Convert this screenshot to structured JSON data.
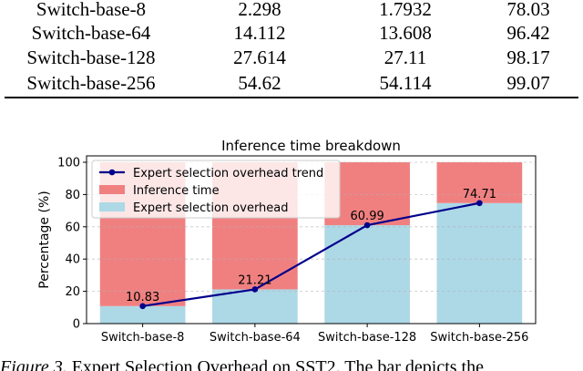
{
  "table": {
    "rows": [
      [
        "Switch-base-8",
        "2.298",
        "1.7932",
        "78.03"
      ],
      [
        "Switch-base-64",
        "14.112",
        "13.608",
        "96.42"
      ],
      [
        "Switch-base-128",
        "27.614",
        "27.11",
        "98.17"
      ],
      [
        "Switch-base-256",
        "54.62",
        "54.114",
        "99.07"
      ]
    ]
  },
  "chart_data": {
    "type": "bar",
    "title": "Inference time breakdown",
    "xlabel": "",
    "ylabel": "Percentage (%)",
    "categories": [
      "Switch-base-8",
      "Switch-base-64",
      "Switch-base-128",
      "Switch-base-256"
    ],
    "ylim": [
      0,
      100
    ],
    "yticks": [
      "0",
      "20",
      "40",
      "60",
      "80",
      "100"
    ],
    "stacked": true,
    "grid": true,
    "legend_position": "top-left",
    "series": [
      {
        "name": "Expert selection overhead",
        "kind": "bar",
        "values": [
          10.83,
          21.21,
          60.99,
          74.71
        ],
        "color": "#add8e6"
      },
      {
        "name": "Inference time",
        "kind": "bar",
        "values": [
          89.17,
          78.79,
          39.01,
          25.29
        ],
        "color": "#f08080"
      },
      {
        "name": "Expert selection overhead trend",
        "kind": "line",
        "values": [
          10.83,
          21.21,
          60.99,
          74.71
        ],
        "color": "#00008b"
      }
    ],
    "data_labels": [
      "10.83",
      "21.21",
      "60.99",
      "74.71"
    ]
  },
  "caption": {
    "label": "Figure 3.",
    "text": " Expert Selection Overhead on SST2. The bar depicts the"
  }
}
